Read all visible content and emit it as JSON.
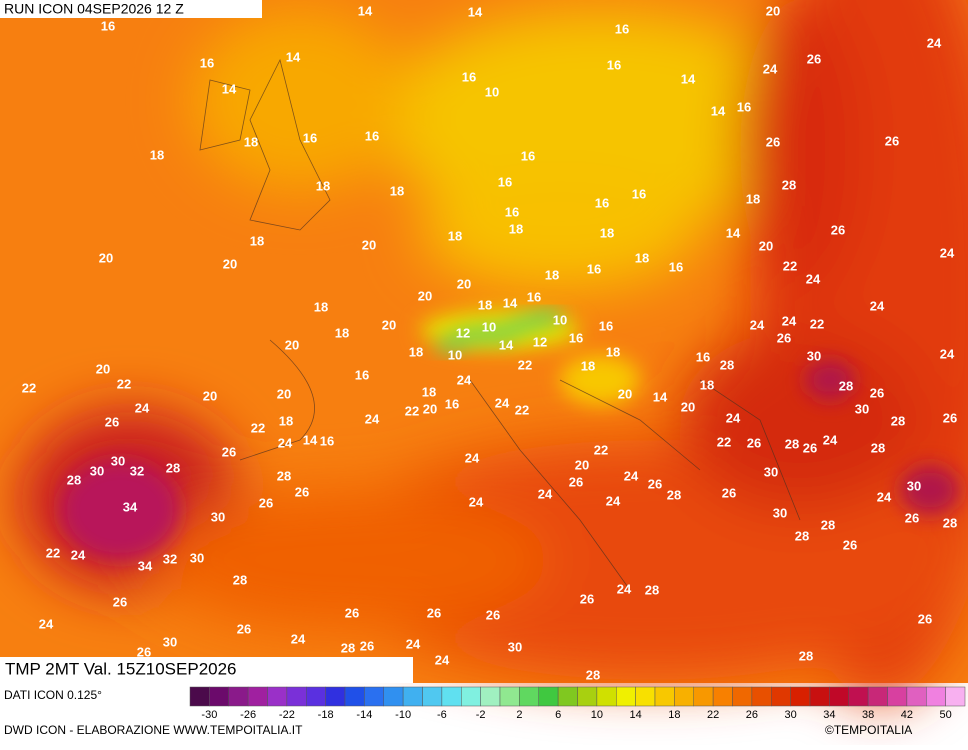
{
  "header": {
    "run": "RUN ICON 04SEP2026 12 Z"
  },
  "map": {
    "field": "TMP 2MT Val. 15Z10SEP2026",
    "labels": [
      16,
      14,
      14,
      16,
      20,
      24,
      16,
      14,
      14,
      16,
      10,
      16,
      14,
      24,
      26,
      14,
      16,
      18,
      16,
      16,
      18,
      16,
      26,
      26,
      18,
      18,
      16,
      16,
      18,
      28,
      16,
      16,
      18,
      18,
      18,
      14,
      20,
      26,
      18,
      20,
      20,
      20,
      18,
      16,
      22,
      24,
      24,
      20,
      18,
      16,
      20,
      18,
      14,
      16,
      24,
      18,
      20,
      18,
      12,
      10,
      10,
      16,
      24,
      24,
      22,
      26,
      20,
      18,
      10,
      14,
      12,
      16,
      18,
      16,
      30,
      24,
      20,
      22,
      22,
      16,
      24,
      22,
      18,
      28,
      20,
      20,
      18,
      18,
      28,
      26,
      24,
      22,
      20,
      16,
      24,
      22,
      20,
      14,
      20,
      30,
      26,
      18,
      24,
      22,
      24,
      28,
      26,
      24,
      14,
      16,
      22,
      26,
      28,
      26,
      24,
      28,
      30,
      26,
      24,
      22,
      30,
      28,
      32,
      30,
      28,
      28,
      20,
      24,
      26,
      26,
      26,
      24,
      26,
      24,
      28,
      26,
      24,
      30,
      34,
      24,
      30,
      30,
      28,
      26,
      28,
      22,
      24,
      32,
      30,
      34,
      28,
      26,
      28,
      24,
      28,
      26,
      26,
      24,
      26,
      26,
      26,
      26,
      26,
      30,
      26,
      24,
      24,
      28,
      26,
      24,
      30,
      28,
      28
    ],
    "legend_colors": [
      "#4b0a4b",
      "#6b0a6b",
      "#8a1a8a",
      "#a020a0",
      "#9a30c8",
      "#7a30d8",
      "#5a30e0",
      "#3030e0",
      "#2050e8",
      "#2a70f0",
      "#3090f0",
      "#40b0f0",
      "#50c8f0",
      "#60e0f0",
      "#80f0e0",
      "#a0f0c0",
      "#90e890",
      "#60d860",
      "#40c840",
      "#80c820",
      "#a8d010",
      "#d0e000",
      "#f0f000",
      "#f8e000",
      "#f8c800",
      "#f8b000",
      "#f89800",
      "#f88000",
      "#f06800",
      "#e85000",
      "#e03800",
      "#d82000",
      "#c81010",
      "#c00828",
      "#c01050",
      "#c82878",
      "#d840a0",
      "#e060c0",
      "#f080e0",
      "#f8b0f0"
    ],
    "legend_ticks": [
      -30,
      -26,
      -22,
      -18,
      -14,
      -10,
      -6,
      -2,
      2,
      6,
      10,
      14,
      18,
      22,
      26,
      30,
      34,
      38,
      42,
      50
    ]
  },
  "footer": {
    "source": "DATI ICON 0.125°",
    "credits": "DWD ICON - ELABORAZIONE WWW.TEMPOITALIA.IT",
    "copyright": "©TEMPOITALIA"
  }
}
